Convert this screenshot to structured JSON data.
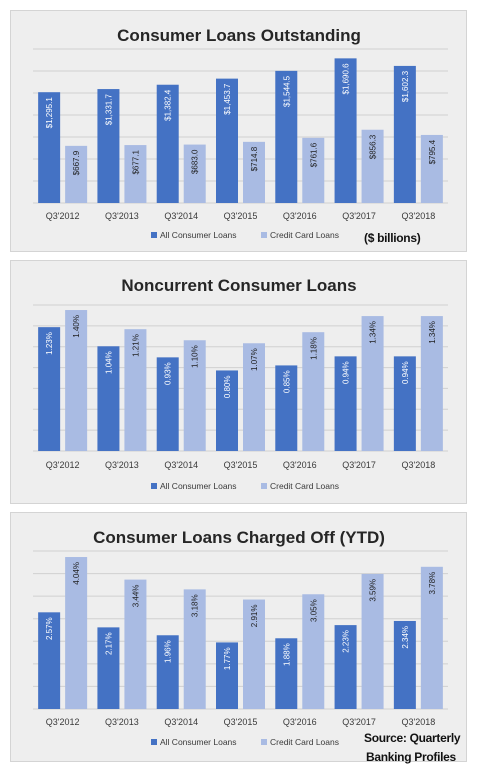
{
  "charts": [
    {
      "chart_data": {
        "type": "bar",
        "title": "Consumer Loans Outstanding",
        "categories": [
          "Q3'2012",
          "Q3'2013",
          "Q3'2014",
          "Q3'2015",
          "Q3'2016",
          "Q3'2017",
          "Q3'2018"
        ],
        "series": [
          {
            "name": "All Consumer Loans",
            "values": [
              1295.1,
              1331.7,
              1382.4,
              1453.7,
              1544.5,
              1690.6,
              1602.3
            ],
            "labels": [
              "$1,295.1",
              "$1,331.7",
              "$1,382.4",
              "$1,453.7",
              "$1,544.5",
              "$1,690.6",
              "$1,602.3"
            ]
          },
          {
            "name": "Credit Card Loans",
            "values": [
              667.9,
              677.1,
              683.0,
              714.8,
              761.6,
              856.3,
              795.4
            ],
            "labels": [
              "$667.9",
              "$677.1",
              "$683.0",
              "$714.8",
              "$761.6",
              "$856.3",
              "$795.4"
            ]
          }
        ],
        "ylim": [
          0,
          1800
        ],
        "grid": true,
        "legend": "bottom"
      }
    },
    {
      "chart_data": {
        "type": "bar",
        "title": "Noncurrent Consumer Loans",
        "categories": [
          "Q3'2012",
          "Q3'2013",
          "Q3'2014",
          "Q3'2015",
          "Q3'2016",
          "Q3'2017",
          "Q3'2018"
        ],
        "series": [
          {
            "name": "All Consumer Loans",
            "values": [
              1.23,
              1.04,
              0.93,
              0.8,
              0.85,
              0.94,
              0.94
            ],
            "labels": [
              "1.23%",
              "1.04%",
              "0.93%",
              "0.80%",
              "0.85%",
              "0.94%",
              "0.94%"
            ]
          },
          {
            "name": "Credit Card Loans",
            "values": [
              1.4,
              1.21,
              1.1,
              1.07,
              1.18,
              1.34,
              1.34
            ],
            "labels": [
              "1.40%",
              "1.21%",
              "1.10%",
              "1.07%",
              "1.18%",
              "1.34%",
              "1.34%"
            ]
          }
        ],
        "ylim": [
          0,
          1.45
        ],
        "grid": true,
        "legend": "bottom"
      }
    },
    {
      "chart_data": {
        "type": "bar",
        "title": "Consumer Loans Charged Off (YTD)",
        "categories": [
          "Q3'2012",
          "Q3'2013",
          "Q3'2014",
          "Q3'2015",
          "Q3'2016",
          "Q3'2017",
          "Q3'2018"
        ],
        "series": [
          {
            "name": "All Consumer Loans",
            "values": [
              2.57,
              2.17,
              1.96,
              1.77,
              1.88,
              2.23,
              2.34
            ],
            "labels": [
              "2.57%",
              "2.17%",
              "1.96%",
              "1.77%",
              "1.88%",
              "2.23%",
              "2.34%"
            ]
          },
          {
            "name": "Credit Card Loans",
            "values": [
              4.04,
              3.44,
              3.18,
              2.91,
              3.05,
              3.59,
              3.78
            ],
            "labels": [
              "4.04%",
              "3.44%",
              "3.18%",
              "2.91%",
              "3.05%",
              "3.59%",
              "3.78%"
            ]
          }
        ],
        "ylim": [
          0,
          4.2
        ],
        "grid": true,
        "legend": "bottom"
      }
    }
  ],
  "notes": {
    "units": "($ billions)",
    "source_line1": "Source: Quarterly",
    "source_line2": "Banking Profiles"
  },
  "colors": {
    "all_consumer": "#4472c4",
    "credit_card": "#a9bbe3",
    "panel_bg": "#eeeeee",
    "grid": "#d0d0d0",
    "title": "#262626",
    "tick": "#3a3a3a"
  }
}
